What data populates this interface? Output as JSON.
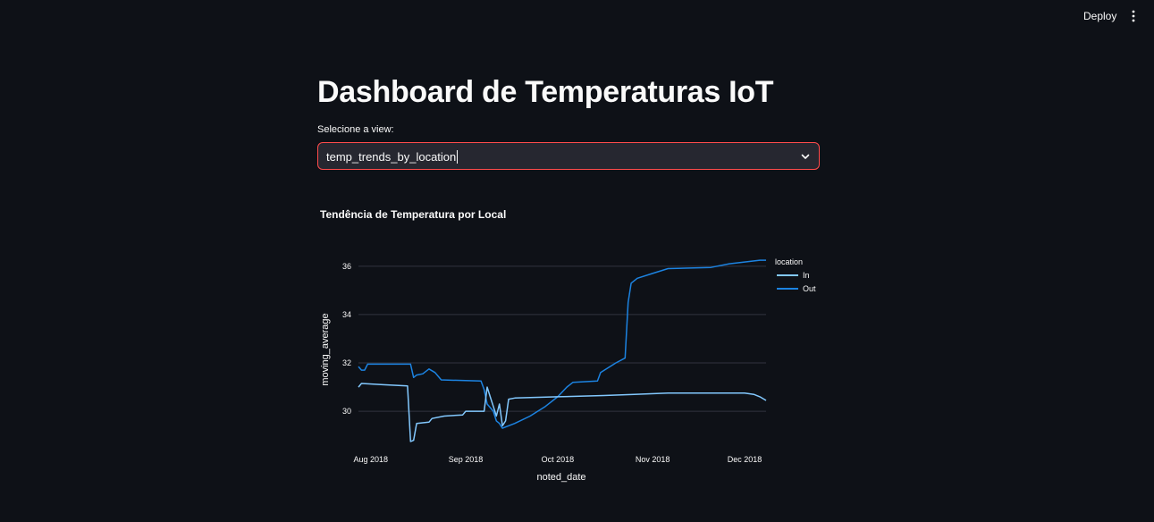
{
  "header": {
    "deploy_label": "Deploy",
    "menu_icon": "vertical-ellipsis-icon"
  },
  "main": {
    "title": "Dashboard de Temperaturas IoT",
    "select_label": "Selecione a view:",
    "select_value": "temp_trends_by_location"
  },
  "chart_data": {
    "type": "line",
    "title": "Tendência de Temperatura por Local",
    "xlabel": "noted_date",
    "ylabel": "moving_average",
    "x_ticks": [
      "Aug 2018",
      "Sep 2018",
      "Oct 2018",
      "Nov 2018",
      "Dec 2018"
    ],
    "y_ticks": [
      30,
      32,
      34,
      36
    ],
    "ylim": [
      28.6,
      36.4
    ],
    "xlim": [
      "2018-07-28",
      "2018-12-08"
    ],
    "grid": true,
    "legend_title": "location",
    "legend_position": "top-right",
    "series": [
      {
        "name": "In",
        "color": "#83c9ff",
        "points": [
          [
            "2018-07-28",
            31.0
          ],
          [
            "2018-07-29",
            31.15
          ],
          [
            "2018-08-05",
            31.1
          ],
          [
            "2018-08-13",
            31.05
          ],
          [
            "2018-08-14",
            28.75
          ],
          [
            "2018-08-15",
            28.8
          ],
          [
            "2018-08-16",
            29.5
          ],
          [
            "2018-08-20",
            29.55
          ],
          [
            "2018-08-21",
            29.7
          ],
          [
            "2018-08-25",
            29.8
          ],
          [
            "2018-08-31",
            29.85
          ],
          [
            "2018-09-01",
            30.0
          ],
          [
            "2018-09-07",
            30.0
          ],
          [
            "2018-09-08",
            31.0
          ],
          [
            "2018-09-09",
            30.6
          ],
          [
            "2018-09-10",
            30.2
          ],
          [
            "2018-09-11",
            29.8
          ],
          [
            "2018-09-12",
            30.3
          ],
          [
            "2018-09-13",
            29.4
          ],
          [
            "2018-09-14",
            29.6
          ],
          [
            "2018-09-15",
            30.5
          ],
          [
            "2018-09-17",
            30.55
          ],
          [
            "2018-10-01",
            30.6
          ],
          [
            "2018-10-16",
            30.65
          ],
          [
            "2018-10-26",
            30.7
          ],
          [
            "2018-11-06",
            30.75
          ],
          [
            "2018-12-01",
            30.75
          ],
          [
            "2018-12-04",
            30.7
          ],
          [
            "2018-12-06",
            30.6
          ],
          [
            "2018-12-08",
            30.45
          ]
        ]
      },
      {
        "name": "Out",
        "color": "#1c83e1",
        "points": [
          [
            "2018-07-28",
            31.85
          ],
          [
            "2018-07-29",
            31.7
          ],
          [
            "2018-07-30",
            31.7
          ],
          [
            "2018-07-31",
            31.95
          ],
          [
            "2018-08-08",
            31.95
          ],
          [
            "2018-08-14",
            31.95
          ],
          [
            "2018-08-15",
            31.4
          ],
          [
            "2018-08-16",
            31.5
          ],
          [
            "2018-08-18",
            31.55
          ],
          [
            "2018-08-20",
            31.75
          ],
          [
            "2018-08-22",
            31.6
          ],
          [
            "2018-08-24",
            31.3
          ],
          [
            "2018-09-06",
            31.25
          ],
          [
            "2018-09-07",
            30.9
          ],
          [
            "2018-09-08",
            30.3
          ],
          [
            "2018-09-10",
            30.0
          ],
          [
            "2018-09-11",
            29.6
          ],
          [
            "2018-09-12",
            29.5
          ],
          [
            "2018-09-13",
            29.3
          ],
          [
            "2018-09-17",
            29.5
          ],
          [
            "2018-09-22",
            29.8
          ],
          [
            "2018-09-27",
            30.2
          ],
          [
            "2018-10-01",
            30.6
          ],
          [
            "2018-10-04",
            31.0
          ],
          [
            "2018-10-06",
            31.2
          ],
          [
            "2018-10-14",
            31.25
          ],
          [
            "2018-10-15",
            31.6
          ],
          [
            "2018-10-20",
            32.0
          ],
          [
            "2018-10-23",
            32.2
          ],
          [
            "2018-10-24",
            34.5
          ],
          [
            "2018-10-25",
            35.3
          ],
          [
            "2018-10-27",
            35.5
          ],
          [
            "2018-11-01",
            35.7
          ],
          [
            "2018-11-06",
            35.9
          ],
          [
            "2018-11-20",
            35.95
          ],
          [
            "2018-11-26",
            36.1
          ],
          [
            "2018-12-06",
            36.25
          ],
          [
            "2018-12-08",
            36.25
          ]
        ]
      }
    ]
  }
}
